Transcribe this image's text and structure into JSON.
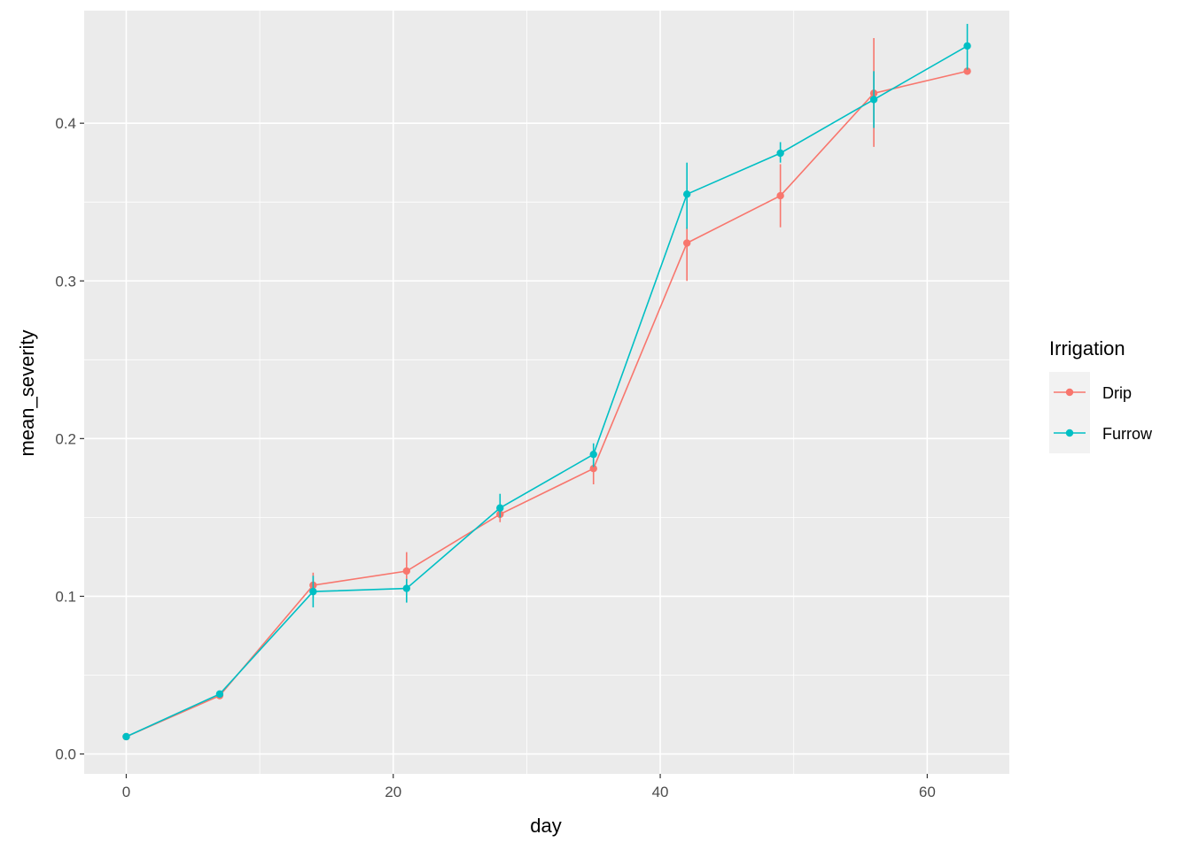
{
  "chart_data": {
    "type": "line",
    "xlabel": "day",
    "ylabel": "mean_severity",
    "xlim": [
      -3.15,
      66.15
    ],
    "ylim": [
      -0.0126,
      0.4714
    ],
    "x_ticks": [
      0,
      20,
      40,
      60
    ],
    "x_tick_labels": [
      "0",
      "20",
      "40",
      "60"
    ],
    "y_ticks": [
      0.0,
      0.1,
      0.2,
      0.3,
      0.4
    ],
    "y_tick_labels": [
      "0.0",
      "0.1",
      "0.2",
      "0.3",
      "0.4"
    ],
    "grid": true,
    "legend": {
      "title": "Irrigation",
      "position": "right"
    },
    "x": [
      0,
      7,
      14,
      21,
      28,
      35,
      42,
      49,
      56,
      63
    ],
    "series": [
      {
        "name": "Drip",
        "color": "#F8766D",
        "values": [
          0.011,
          0.037,
          0.107,
          0.116,
          0.152,
          0.181,
          0.324,
          0.354,
          0.419,
          0.433
        ],
        "err_low": [
          0.009,
          0.035,
          0.099,
          0.105,
          0.147,
          0.171,
          0.3,
          0.334,
          0.385,
          0.433
        ],
        "err_high": [
          0.013,
          0.039,
          0.115,
          0.128,
          0.158,
          0.19,
          0.334,
          0.374,
          0.454,
          0.433
        ]
      },
      {
        "name": "Furrow",
        "color": "#00BFC4",
        "values": [
          0.011,
          0.038,
          0.103,
          0.105,
          0.156,
          0.19,
          0.355,
          0.381,
          0.415,
          0.449
        ],
        "err_low": [
          0.009,
          0.036,
          0.093,
          0.096,
          0.15,
          0.182,
          0.333,
          0.375,
          0.397,
          0.434
        ],
        "err_high": [
          0.013,
          0.04,
          0.113,
          0.111,
          0.165,
          0.197,
          0.375,
          0.388,
          0.433,
          0.463
        ]
      }
    ]
  }
}
